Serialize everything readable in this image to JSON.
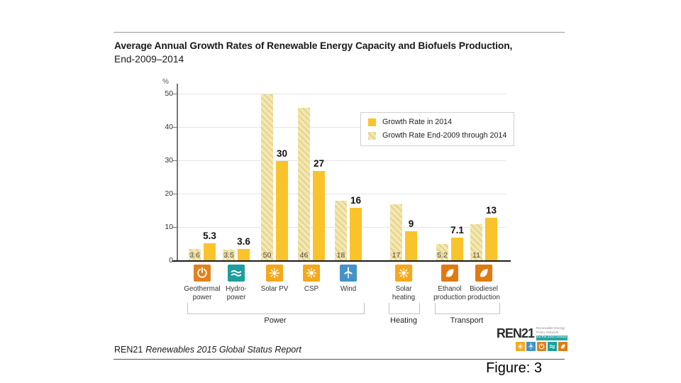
{
  "title": {
    "line1": "Average Annual Growth Rates of Renewable Energy Capacity and Biofuels Production,",
    "line2": "End-2009–2014"
  },
  "chart_data": {
    "type": "bar",
    "title": "Average Annual Growth Rates of Renewable Energy Capacity and Biofuels Production, End-2009–2014",
    "ylabel": "%",
    "ylim": [
      0,
      53
    ],
    "yticks": [
      0,
      10,
      20,
      30,
      40,
      50
    ],
    "grid": true,
    "legend_position": "inside-top-right",
    "series": [
      {
        "name": "Growth Rate in 2014",
        "style": "solid",
        "color": "#F9C32B"
      },
      {
        "name": "Growth Rate End-2009 through 2014",
        "style": "hatched",
        "color": "#F3E8B6",
        "hatch_color": "#E8D68D"
      }
    ],
    "column_offsets": [
      16,
      64,
      118,
      170,
      222,
      300,
      365,
      413
    ],
    "groups": [
      {
        "label": "Power",
        "items": [
          {
            "category": "Geothermal power",
            "label_lines": [
              "Geothermal",
              "power"
            ],
            "glyph": "power",
            "icon": "geothermal-power-icon",
            "icon_color": "#E2821E",
            "growth_end2009_2014": 3.6,
            "growth_end2009_2014_label": "3.6",
            "growth_2014": 5.3,
            "growth_2014_label": "5.3"
          },
          {
            "category": "Hydropower",
            "label_lines": [
              "Hydro-",
              "power"
            ],
            "glyph": "waves",
            "icon": "hydropower-icon",
            "icon_color": "#1E9E9E",
            "growth_end2009_2014": 3.5,
            "growth_end2009_2014_label": "3.5",
            "growth_2014": 3.6,
            "growth_2014_label": "3.6"
          },
          {
            "category": "Solar PV",
            "label_lines": [
              "Solar PV"
            ],
            "glyph": "sun",
            "icon": "solar-pv-icon",
            "icon_color": "#F5A81C",
            "growth_end2009_2014": 50,
            "growth_end2009_2014_label": "50",
            "growth_2014": 30,
            "growth_2014_label": "30"
          },
          {
            "category": "CSP",
            "label_lines": [
              "CSP"
            ],
            "glyph": "sun",
            "icon": "csp-icon",
            "icon_color": "#F5A81C",
            "growth_end2009_2014": 46,
            "growth_end2009_2014_label": "46",
            "growth_2014": 27,
            "growth_2014_label": "27"
          },
          {
            "category": "Wind",
            "label_lines": [
              "Wind"
            ],
            "glyph": "wind",
            "icon": "wind-icon",
            "icon_color": "#4493C6",
            "growth_end2009_2014": 18,
            "growth_end2009_2014_label": "18",
            "growth_2014": 16,
            "growth_2014_label": "16"
          }
        ]
      },
      {
        "label": "Heating",
        "items": [
          {
            "category": "Solar heating",
            "label_lines": [
              "Solar",
              "heating"
            ],
            "glyph": "sun",
            "icon": "solar-heating-icon",
            "icon_color": "#F5A81C",
            "growth_end2009_2014": 17,
            "growth_end2009_2014_label": "17",
            "growth_2014": 9,
            "growth_2014_label": "9"
          }
        ]
      },
      {
        "label": "Transport",
        "items": [
          {
            "category": "Ethanol production",
            "label_lines": [
              "Ethanol",
              "production"
            ],
            "glyph": "leaf",
            "icon": "ethanol-production-icon",
            "icon_color": "#E07A12",
            "growth_end2009_2014": 5.2,
            "growth_end2009_2014_label": "5.2",
            "growth_2014": 7.1,
            "growth_2014_label": "7.1"
          },
          {
            "category": "Biodiesel production",
            "label_lines": [
              "Biodiesel",
              "production"
            ],
            "glyph": "leaf",
            "icon": "biodiesel-production-icon",
            "icon_color": "#E07A12",
            "growth_end2009_2014": 11,
            "growth_end2009_2014_label": "11",
            "growth_2014": 13,
            "growth_2014_label": "13"
          }
        ]
      }
    ]
  },
  "footer": {
    "source_name": "REN21",
    "source_title": "Renewables 2015 Global Status Report",
    "figure_label": "Figure: 3"
  },
  "logo": {
    "name": "REN21",
    "tagline_lines": [
      "Renewable Energy",
      "Policy Network",
      "for the 21st Century"
    ],
    "accent_teal": "#2AA5A5",
    "icon_squares": [
      {
        "glyph": "sun",
        "name": "sun-icon",
        "color": "#F5A81C"
      },
      {
        "glyph": "wind",
        "name": "wind-turbine-icon",
        "color": "#4493C6"
      },
      {
        "glyph": "power",
        "name": "geothermal-icon",
        "color": "#E2821E"
      },
      {
        "glyph": "waves",
        "name": "waves-icon",
        "color": "#1E9E9E"
      },
      {
        "glyph": "leaf",
        "name": "leaf-icon",
        "color": "#E07A12"
      }
    ]
  }
}
